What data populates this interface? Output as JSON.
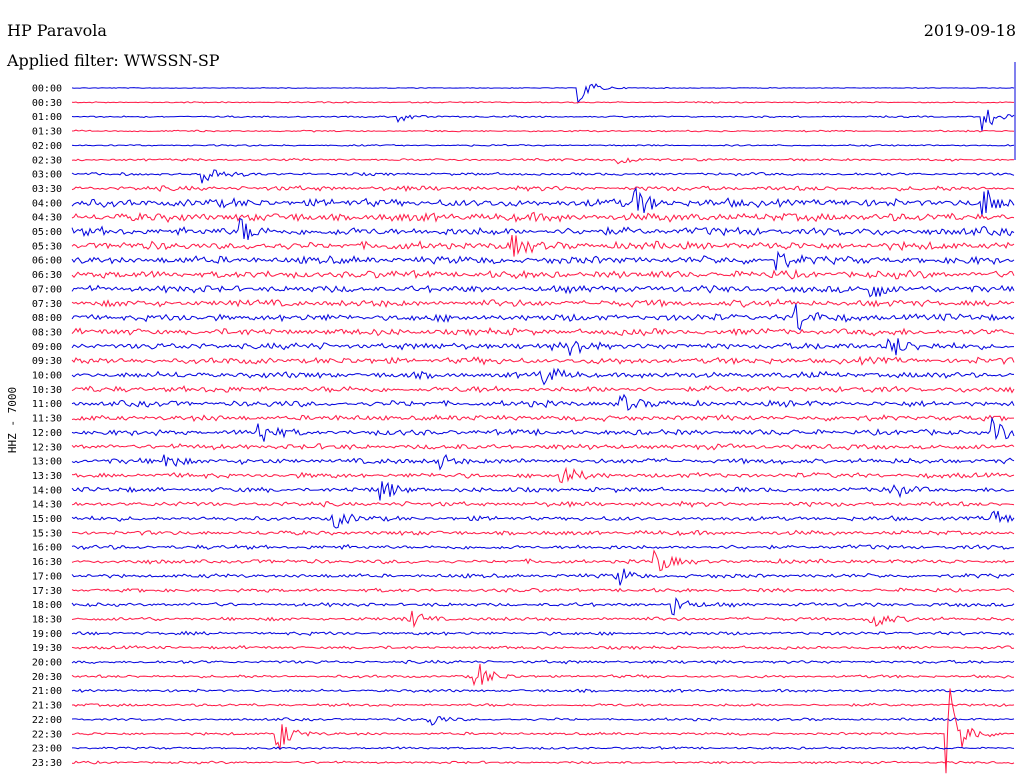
{
  "header": {
    "station": "HP Paravola",
    "date": "2019-09-18",
    "filter_label": "Applied filter: WWSSN-SP"
  },
  "chart_data": {
    "type": "line",
    "title": "HP Paravola",
    "subtitle": "Applied filter: WWSSN-SP",
    "ylabel": "HHZ - 7000",
    "date": "2019-09-18",
    "colors": [
      "#0000dd",
      "#ff1744"
    ],
    "rows": [
      "00:00",
      "00:30",
      "01:00",
      "01:30",
      "02:00",
      "02:30",
      "03:00",
      "03:30",
      "04:00",
      "04:30",
      "05:00",
      "05:30",
      "06:00",
      "06:30",
      "07:00",
      "07:30",
      "08:00",
      "08:30",
      "09:00",
      "09:30",
      "10:00",
      "10:30",
      "11:00",
      "11:30",
      "12:00",
      "12:30",
      "13:00",
      "13:30",
      "14:00",
      "14:30",
      "15:00",
      "15:30",
      "16:00",
      "16:30",
      "17:00",
      "17:30",
      "18:00",
      "18:30",
      "19:00",
      "19:30",
      "20:00",
      "20:30",
      "21:00",
      "21:30",
      "22:00",
      "22:30",
      "23:00",
      "23:30"
    ],
    "noise": [
      0.3,
      0.5,
      0.6,
      0.6,
      0.6,
      0.9,
      1.1,
      1.8,
      3.0,
      3.2,
      3.0,
      3.0,
      2.8,
      2.8,
      2.6,
      2.6,
      2.6,
      2.5,
      2.5,
      2.4,
      2.3,
      2.3,
      2.2,
      2.1,
      2.1,
      2.0,
      2.0,
      1.9,
      1.8,
      1.8,
      1.7,
      1.7,
      1.6,
      1.6,
      1.5,
      1.4,
      1.4,
      1.4,
      1.3,
      1.2,
      1.2,
      1.1,
      1.1,
      1.1,
      1.0,
      1.0,
      0.9,
      0.9
    ],
    "events": [
      {
        "row": 0,
        "x": 0.54,
        "amp": 15
      },
      {
        "row": 2,
        "x": 0.97,
        "amp": 16
      },
      {
        "row": 2,
        "x": 0.35,
        "amp": 5
      },
      {
        "row": 6,
        "x": 0.14,
        "amp": 14
      },
      {
        "row": 5,
        "x": 0.58,
        "amp": 6
      },
      {
        "row": 8,
        "x": 0.6,
        "amp": 14
      },
      {
        "row": 8,
        "x": 0.97,
        "amp": 13
      },
      {
        "row": 10,
        "x": 0.18,
        "amp": 12
      },
      {
        "row": 11,
        "x": 0.47,
        "amp": 9
      },
      {
        "row": 12,
        "x": 0.75,
        "amp": 10
      },
      {
        "row": 14,
        "x": 0.85,
        "amp": 11
      },
      {
        "row": 16,
        "x": 0.77,
        "amp": 14
      },
      {
        "row": 18,
        "x": 0.53,
        "amp": 11
      },
      {
        "row": 18,
        "x": 0.87,
        "amp": 12
      },
      {
        "row": 20,
        "x": 0.5,
        "amp": 9
      },
      {
        "row": 22,
        "x": 0.58,
        "amp": 12
      },
      {
        "row": 24,
        "x": 0.2,
        "amp": 13
      },
      {
        "row": 24,
        "x": 0.98,
        "amp": 12
      },
      {
        "row": 26,
        "x": 0.1,
        "amp": 10
      },
      {
        "row": 26,
        "x": 0.39,
        "amp": 9
      },
      {
        "row": 27,
        "x": 0.52,
        "amp": 12
      },
      {
        "row": 28,
        "x": 0.33,
        "amp": 11
      },
      {
        "row": 28,
        "x": 0.87,
        "amp": 9
      },
      {
        "row": 30,
        "x": 0.28,
        "amp": 9
      },
      {
        "row": 30,
        "x": 0.98,
        "amp": 8
      },
      {
        "row": 33,
        "x": 0.62,
        "amp": 13
      },
      {
        "row": 34,
        "x": 0.58,
        "amp": 10
      },
      {
        "row": 36,
        "x": 0.64,
        "amp": 10
      },
      {
        "row": 37,
        "x": 0.36,
        "amp": 9
      },
      {
        "row": 37,
        "x": 0.85,
        "amp": 10
      },
      {
        "row": 41,
        "x": 0.43,
        "amp": 16
      },
      {
        "row": 44,
        "x": 0.38,
        "amp": 7
      },
      {
        "row": 45,
        "x": 0.22,
        "amp": 18
      },
      {
        "row": 45,
        "x": 0.93,
        "amp": 55
      }
    ]
  }
}
